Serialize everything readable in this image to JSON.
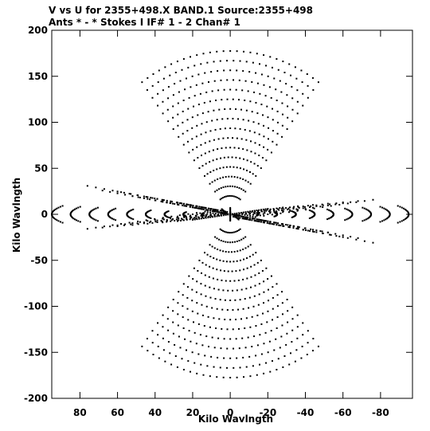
{
  "chart_data": {
    "type": "scatter",
    "title": "V vs U for 2355+498.X BAND.1   Source:2355+498",
    "subtitle": "Ants * - *     Stokes I   IF# 1 - 2  Chan# 1",
    "xlabel": "Kilo Wavlngth",
    "ylabel": "Kilo Wavlngth",
    "xlim": [
      95,
      -97
    ],
    "ylim": [
      -200,
      200
    ],
    "xticks": [
      80,
      60,
      40,
      20,
      0,
      -20,
      -40,
      -60,
      -80
    ],
    "yticks": [
      -200,
      -150,
      -100,
      -50,
      0,
      50,
      100,
      150,
      200
    ],
    "xtick_labels": [
      "80",
      "60",
      "40",
      "20",
      "0",
      "-20",
      "-40",
      "-60",
      "-80"
    ],
    "ytick_labels": [
      "-200",
      "-150",
      "-100",
      "-50",
      "0",
      "50",
      "100",
      "150",
      "200"
    ],
    "grid": false,
    "series": [
      {
        "values": "uv-coverage tracks (baseline arcs, conjugate-symmetric)",
        "x": [],
        "y": []
      }
    ]
  }
}
